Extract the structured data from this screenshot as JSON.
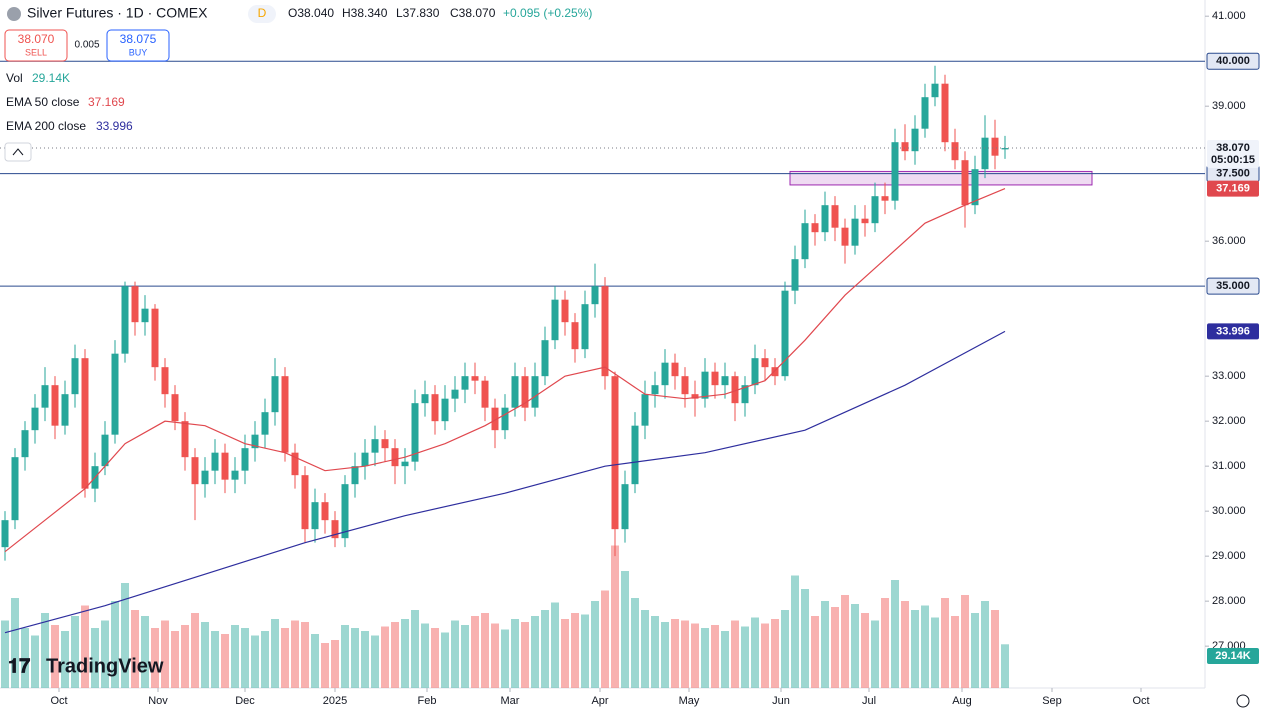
{
  "header": {
    "symbol": "Silver Futures · 1D · COMEX",
    "badge": "D",
    "open": "O38.040",
    "high": "H38.340",
    "low": "L37.830",
    "close": "C38.070",
    "change": "+0.095 (+0.25%)",
    "sell_price": "38.070",
    "sell": "SELL",
    "spread": "0.005",
    "buy_price": "38.075",
    "buy": "BUY",
    "logo": "TradingView"
  },
  "chart_data": {
    "type": "candlestick",
    "up_color": "#26a69a",
    "down_color": "#ef5350",
    "ylim": [
      26.07,
      41.36
    ],
    "xlim": [
      -0.5,
      120
    ],
    "yticks": [
      {
        "value": 27,
        "label": "27.000"
      },
      {
        "value": 28,
        "label": "28.000"
      },
      {
        "value": 29,
        "label": "29.000"
      },
      {
        "value": 30,
        "label": "30.000"
      },
      {
        "value": 31,
        "label": "31.000"
      },
      {
        "value": 32,
        "label": "32.000"
      },
      {
        "value": 33,
        "label": "33.000"
      },
      {
        "value": 36,
        "label": "36.000"
      },
      {
        "value": 39,
        "label": "39.000"
      },
      {
        "value": 41,
        "label": "41.000"
      }
    ],
    "xticks": [
      {
        "value": 5.4,
        "label": "Oct"
      },
      {
        "value": 15.3,
        "label": "Nov"
      },
      {
        "value": 24,
        "label": "Dec"
      },
      {
        "value": 33,
        "label": "2025"
      },
      {
        "value": 42.2,
        "label": "Feb"
      },
      {
        "value": 50.5,
        "label": "Mar"
      },
      {
        "value": 59.5,
        "label": "Apr"
      },
      {
        "value": 68.4,
        "label": "May"
      },
      {
        "value": 77.6,
        "label": "Jun"
      },
      {
        "value": 86.4,
        "label": "Jul"
      },
      {
        "value": 95.7,
        "label": "Aug"
      },
      {
        "value": 104.7,
        "label": "Sep"
      },
      {
        "value": 113.6,
        "label": "Oct"
      }
    ],
    "ohlc": [
      [
        29.2,
        30.0,
        28.9,
        29.8
      ],
      [
        29.8,
        31.4,
        29.6,
        31.2
      ],
      [
        31.2,
        32.0,
        30.9,
        31.8
      ],
      [
        31.8,
        32.6,
        31.5,
        32.3
      ],
      [
        32.3,
        33.2,
        32.0,
        32.8
      ],
      [
        32.8,
        33.0,
        31.6,
        31.9
      ],
      [
        31.9,
        32.9,
        31.7,
        32.6
      ],
      [
        32.6,
        33.7,
        32.3,
        33.4
      ],
      [
        33.4,
        33.6,
        30.3,
        30.5
      ],
      [
        30.5,
        31.3,
        30.2,
        31.0
      ],
      [
        31.0,
        32.0,
        30.8,
        31.7
      ],
      [
        31.7,
        33.8,
        31.5,
        33.5
      ],
      [
        33.5,
        35.1,
        33.3,
        35.0
      ],
      [
        35.0,
        35.1,
        33.9,
        34.2
      ],
      [
        34.2,
        34.8,
        33.9,
        34.5
      ],
      [
        34.5,
        34.6,
        32.9,
        33.2
      ],
      [
        33.2,
        33.4,
        32.3,
        32.6
      ],
      [
        32.6,
        32.8,
        31.8,
        32.0
      ],
      [
        32.0,
        32.2,
        30.9,
        31.2
      ],
      [
        31.2,
        31.4,
        29.8,
        30.6
      ],
      [
        30.6,
        31.2,
        30.3,
        30.9
      ],
      [
        30.9,
        31.6,
        30.6,
        31.3
      ],
      [
        31.3,
        31.5,
        30.4,
        30.7
      ],
      [
        30.7,
        31.2,
        30.4,
        30.9
      ],
      [
        30.9,
        31.7,
        30.6,
        31.4
      ],
      [
        31.4,
        32.0,
        31.1,
        31.7
      ],
      [
        31.7,
        32.5,
        31.4,
        32.2
      ],
      [
        32.2,
        33.4,
        31.9,
        33.0
      ],
      [
        33.0,
        33.2,
        31.1,
        31.3
      ],
      [
        31.3,
        31.5,
        30.5,
        30.8
      ],
      [
        30.8,
        31.0,
        29.3,
        29.6
      ],
      [
        29.6,
        30.5,
        29.3,
        30.2
      ],
      [
        30.2,
        30.4,
        29.5,
        29.8
      ],
      [
        29.8,
        30.0,
        29.2,
        29.4
      ],
      [
        29.4,
        30.8,
        29.2,
        30.6
      ],
      [
        30.6,
        31.3,
        30.3,
        31.0
      ],
      [
        31.0,
        31.6,
        30.7,
        31.3
      ],
      [
        31.3,
        31.9,
        31.0,
        31.6
      ],
      [
        31.6,
        31.8,
        31.1,
        31.4
      ],
      [
        31.4,
        31.6,
        30.6,
        31.0
      ],
      [
        31.0,
        31.4,
        30.6,
        31.1
      ],
      [
        31.1,
        32.7,
        30.9,
        32.4
      ],
      [
        32.4,
        32.9,
        32.1,
        32.6
      ],
      [
        32.6,
        32.8,
        31.7,
        32.0
      ],
      [
        32.0,
        32.8,
        31.8,
        32.5
      ],
      [
        32.5,
        33.0,
        32.2,
        32.7
      ],
      [
        32.7,
        33.3,
        32.4,
        33.0
      ],
      [
        33.0,
        33.3,
        32.6,
        32.9
      ],
      [
        32.9,
        33.0,
        32.0,
        32.3
      ],
      [
        32.3,
        32.5,
        31.4,
        31.8
      ],
      [
        31.8,
        32.6,
        31.6,
        32.3
      ],
      [
        32.3,
        33.3,
        32.1,
        33.0
      ],
      [
        33.0,
        33.2,
        32.0,
        32.3
      ],
      [
        32.3,
        33.3,
        32.1,
        33.0
      ],
      [
        33.0,
        34.1,
        32.8,
        33.8
      ],
      [
        33.8,
        35.0,
        33.6,
        34.7
      ],
      [
        34.7,
        34.9,
        33.9,
        34.2
      ],
      [
        34.2,
        34.4,
        33.3,
        33.6
      ],
      [
        33.6,
        34.9,
        33.4,
        34.6
      ],
      [
        34.6,
        35.5,
        34.3,
        35.0
      ],
      [
        35.0,
        35.2,
        32.7,
        33.0
      ],
      [
        33.0,
        33.1,
        29.0,
        29.6
      ],
      [
        29.6,
        30.9,
        29.3,
        30.6
      ],
      [
        30.6,
        32.2,
        30.4,
        31.9
      ],
      [
        31.9,
        32.9,
        31.6,
        32.6
      ],
      [
        32.6,
        33.1,
        32.3,
        32.8
      ],
      [
        32.8,
        33.6,
        32.5,
        33.3
      ],
      [
        33.3,
        33.5,
        32.7,
        33.0
      ],
      [
        33.0,
        33.2,
        32.3,
        32.6
      ],
      [
        32.6,
        32.9,
        32.1,
        32.5
      ],
      [
        32.5,
        33.4,
        32.3,
        33.1
      ],
      [
        33.1,
        33.3,
        32.5,
        32.8
      ],
      [
        32.8,
        33.3,
        32.5,
        33.0
      ],
      [
        33.0,
        33.1,
        32.0,
        32.4
      ],
      [
        32.4,
        33.0,
        32.1,
        32.8
      ],
      [
        32.8,
        33.7,
        32.6,
        33.4
      ],
      [
        33.4,
        33.6,
        32.9,
        33.2
      ],
      [
        33.2,
        33.4,
        32.8,
        33.0
      ],
      [
        33.0,
        35.1,
        32.9,
        34.9
      ],
      [
        34.9,
        35.9,
        34.6,
        35.6
      ],
      [
        35.6,
        36.7,
        35.4,
        36.4
      ],
      [
        36.4,
        36.6,
        35.9,
        36.2
      ],
      [
        36.2,
        37.1,
        36.0,
        36.8
      ],
      [
        36.8,
        37.0,
        36.0,
        36.3
      ],
      [
        36.3,
        36.5,
        35.5,
        35.9
      ],
      [
        35.9,
        36.8,
        35.7,
        36.5
      ],
      [
        36.5,
        36.8,
        36.1,
        36.4
      ],
      [
        36.4,
        37.3,
        36.2,
        37.0
      ],
      [
        37.0,
        37.3,
        36.6,
        36.9
      ],
      [
        36.9,
        38.5,
        36.7,
        38.2
      ],
      [
        38.2,
        38.6,
        37.8,
        38.0
      ],
      [
        38.0,
        38.8,
        37.7,
        38.5
      ],
      [
        38.5,
        39.5,
        38.3,
        39.2
      ],
      [
        39.2,
        39.9,
        39.0,
        39.5
      ],
      [
        39.5,
        39.7,
        38.0,
        38.2
      ],
      [
        38.2,
        38.5,
        37.6,
        37.8
      ],
      [
        37.8,
        38.0,
        36.3,
        36.8
      ],
      [
        36.8,
        37.9,
        36.6,
        37.6
      ],
      [
        37.6,
        38.8,
        37.4,
        38.3
      ],
      [
        38.3,
        38.7,
        37.6,
        37.9
      ],
      [
        38.04,
        38.34,
        37.83,
        38.07
      ]
    ],
    "volume": {
      "name": "Vol",
      "value_label": "29.14K",
      "values": [
        45,
        60,
        40,
        35,
        50,
        42,
        38,
        48,
        55,
        40,
        45,
        58,
        70,
        52,
        48,
        40,
        45,
        38,
        42,
        50,
        44,
        38,
        36,
        42,
        40,
        35,
        38,
        46,
        40,
        45,
        44,
        36,
        30,
        32,
        42,
        40,
        38,
        35,
        41,
        44,
        46,
        52,
        43,
        40,
        37,
        45,
        42,
        48,
        50,
        43,
        39,
        46,
        44,
        48,
        52,
        57,
        46,
        50,
        49,
        58,
        65,
        95,
        78,
        60,
        52,
        48,
        44,
        46,
        45,
        43,
        40,
        42,
        38,
        45,
        41,
        47,
        43,
        46,
        52,
        75,
        66,
        48,
        58,
        54,
        62,
        56,
        50,
        45,
        60,
        72,
        58,
        52,
        55,
        47,
        60,
        48,
        62,
        50,
        58,
        52,
        29.14
      ]
    },
    "lines": [
      {
        "name": "EMA 50 close",
        "color": "#e0484e",
        "x": [
          0,
          4,
          8,
          12,
          16,
          20,
          24,
          28,
          32,
          36,
          40,
          44,
          48,
          52,
          56,
          60,
          62,
          64,
          68,
          72,
          76,
          80,
          84,
          88,
          92,
          96,
          100
        ],
        "values": [
          29.1,
          29.8,
          30.5,
          31.5,
          32.0,
          31.9,
          31.5,
          31.3,
          30.9,
          31.0,
          31.2,
          31.5,
          31.9,
          32.4,
          33.0,
          33.2,
          32.9,
          32.6,
          32.5,
          32.6,
          32.9,
          33.8,
          34.8,
          35.6,
          36.4,
          36.8,
          37.169
        ]
      },
      {
        "name": "EMA 200 close",
        "color": "#2e2e9e",
        "x": [
          0,
          10,
          20,
          30,
          40,
          50,
          60,
          70,
          80,
          90,
          100
        ],
        "values": [
          27.3,
          27.9,
          28.6,
          29.3,
          29.9,
          30.4,
          31.0,
          31.3,
          31.8,
          32.8,
          33.996
        ]
      }
    ],
    "hlines": [
      {
        "value": 40,
        "label": "40.000"
      },
      {
        "value": 37.5,
        "label": "37.500"
      },
      {
        "value": 35,
        "label": "35.000"
      }
    ],
    "zone": {
      "low": 37.25,
      "high": 37.55,
      "x": [
        78.5,
        108.7
      ]
    },
    "last_price": {
      "value": 38.07,
      "label": "38.070",
      "countdown": "05:00:15"
    }
  }
}
